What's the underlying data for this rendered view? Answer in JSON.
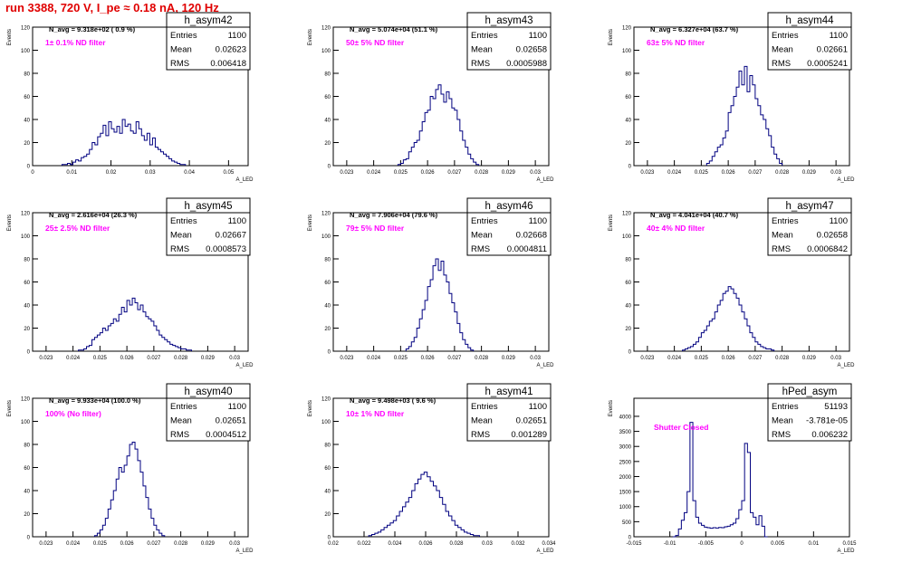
{
  "page": {
    "title": "run 3388,   720 V, I_pe ≈ 0.18 nA, 120 Hz"
  },
  "style": {
    "line_color": "#000080",
    "filter_text_color": "#ff00ff",
    "title_color": "#e00000"
  },
  "chart_data": [
    {
      "type": "bar",
      "name": "h_asym42",
      "ylabel": "Events",
      "xlabel": "A_LED",
      "navg_text": "N_avg = 9.318e+02 ( 0.9 %)",
      "filter_text": "1± 0.1% ND filter",
      "stats": {
        "Entries": "1100",
        "Mean": "0.02623",
        "RMS": "0.006418"
      },
      "xlim": [
        0,
        0.055
      ],
      "ylim": [
        0,
        120
      ],
      "xticks": [
        0,
        0.01,
        0.02,
        0.03,
        0.04,
        0.05
      ],
      "xtick_labels": [
        "0",
        "0.01",
        "0.02",
        "0.03",
        "0.04",
        "0.05"
      ],
      "yticks": [
        0,
        20,
        40,
        60,
        80,
        100,
        120
      ],
      "bin_start": 0.0075,
      "bin_width": 0.0007,
      "values": [
        1,
        1,
        2,
        1,
        3,
        5,
        4,
        7,
        8,
        10,
        14,
        20,
        18,
        25,
        28,
        35,
        26,
        38,
        32,
        29,
        34,
        28,
        40,
        34,
        36,
        30,
        28,
        38,
        32,
        26,
        22,
        28,
        18,
        24,
        16,
        14,
        12,
        10,
        8,
        6,
        4,
        3,
        2,
        1,
        1
      ]
    },
    {
      "type": "bar",
      "name": "h_asym43",
      "ylabel": "Events",
      "xlabel": "A_LED",
      "navg_text": "N_avg = 5.074e+04 (51.1 %)",
      "filter_text": "50± 5% ND filter",
      "stats": {
        "Entries": "1100",
        "Mean": "0.02658",
        "RMS": "0.0005988"
      },
      "xlim": [
        0.0225,
        0.0305
      ],
      "ylim": [
        0,
        120
      ],
      "xticks": [
        0.023,
        0.024,
        0.025,
        0.026,
        0.027,
        0.028,
        0.029,
        0.03
      ],
      "xtick_labels": [
        "0.023",
        "0.024",
        "0.025",
        "0.026",
        "0.027",
        "0.028",
        "0.029",
        "0.03"
      ],
      "yticks": [
        0,
        20,
        40,
        60,
        80,
        100,
        120
      ],
      "bin_start": 0.0249,
      "bin_width": 0.0001,
      "values": [
        1,
        2,
        5,
        6,
        12,
        16,
        20,
        22,
        30,
        38,
        46,
        48,
        60,
        58,
        66,
        70,
        62,
        55,
        64,
        58,
        50,
        48,
        40,
        30,
        22,
        16,
        10,
        6,
        3,
        1
      ]
    },
    {
      "type": "bar",
      "name": "h_asym44",
      "ylabel": "Events",
      "xlabel": "A_LED",
      "navg_text": "N_avg = 6.327e+04 (63.7 %)",
      "filter_text": "63± 5% ND filter",
      "stats": {
        "Entries": "1100",
        "Mean": "0.02661",
        "RMS": "0.0005241"
      },
      "xlim": [
        0.0225,
        0.0305
      ],
      "ylim": [
        0,
        120
      ],
      "xticks": [
        0.023,
        0.024,
        0.025,
        0.026,
        0.027,
        0.028,
        0.029,
        0.03
      ],
      "xtick_labels": [
        "0.023",
        "0.024",
        "0.025",
        "0.026",
        "0.027",
        "0.028",
        "0.029",
        "0.03"
      ],
      "yticks": [
        0,
        20,
        40,
        60,
        80,
        100,
        120
      ],
      "bin_start": 0.0252,
      "bin_width": 0.0001,
      "values": [
        2,
        4,
        8,
        12,
        16,
        18,
        24,
        30,
        46,
        52,
        60,
        68,
        82,
        70,
        86,
        64,
        78,
        70,
        58,
        52,
        44,
        40,
        32,
        26,
        16,
        10,
        6,
        2
      ]
    },
    {
      "type": "bar",
      "name": "h_asym45",
      "ylabel": "Events",
      "xlabel": "A_LED",
      "navg_text": "N_avg = 2.616e+04 (26.3 %)",
      "filter_text": "25± 2.5% ND filter",
      "stats": {
        "Entries": "1100",
        "Mean": "0.02667",
        "RMS": "0.0008573"
      },
      "xlim": [
        0.0225,
        0.0305
      ],
      "ylim": [
        0,
        120
      ],
      "xticks": [
        0.023,
        0.024,
        0.025,
        0.026,
        0.027,
        0.028,
        0.029,
        0.03
      ],
      "xtick_labels": [
        "0.023",
        "0.024",
        "0.025",
        "0.026",
        "0.027",
        "0.028",
        "0.029",
        "0.03"
      ],
      "yticks": [
        0,
        20,
        40,
        60,
        80,
        100,
        120
      ],
      "bin_start": 0.0242,
      "bin_width": 0.0001,
      "values": [
        1,
        1,
        2,
        4,
        5,
        10,
        12,
        14,
        16,
        20,
        18,
        22,
        24,
        28,
        26,
        32,
        38,
        34,
        44,
        40,
        46,
        42,
        36,
        40,
        34,
        30,
        28,
        26,
        22,
        18,
        14,
        12,
        10,
        8,
        6,
        5,
        4,
        3,
        2,
        2,
        1,
        1
      ]
    },
    {
      "type": "bar",
      "name": "h_asym46",
      "ylabel": "Events",
      "xlabel": "A_LED",
      "navg_text": "N_avg = 7.906e+04 (79.6 %)",
      "filter_text": "79± 5% ND filter",
      "stats": {
        "Entries": "1100",
        "Mean": "0.02668",
        "RMS": "0.0004811"
      },
      "xlim": [
        0.0225,
        0.0305
      ],
      "ylim": [
        0,
        120
      ],
      "xticks": [
        0.023,
        0.024,
        0.025,
        0.026,
        0.027,
        0.028,
        0.029,
        0.03
      ],
      "xtick_labels": [
        "0.023",
        "0.024",
        "0.025",
        "0.026",
        "0.027",
        "0.028",
        "0.029",
        "0.03"
      ],
      "yticks": [
        0,
        20,
        40,
        60,
        80,
        100,
        120
      ],
      "bin_start": 0.0252,
      "bin_width": 0.0001,
      "values": [
        2,
        4,
        8,
        12,
        20,
        28,
        36,
        44,
        56,
        62,
        74,
        80,
        70,
        78,
        66,
        60,
        50,
        42,
        34,
        24,
        16,
        10,
        6,
        3,
        1
      ]
    },
    {
      "type": "bar",
      "name": "h_asym47",
      "ylabel": "Events",
      "xlabel": "A_LED",
      "navg_text": "N_avg = 4.041e+04 (40.7 %)",
      "filter_text": "40± 4% ND filter",
      "stats": {
        "Entries": "1100",
        "Mean": "0.02658",
        "RMS": "0.0006842"
      },
      "xlim": [
        0.0225,
        0.0305
      ],
      "ylim": [
        0,
        120
      ],
      "xticks": [
        0.023,
        0.024,
        0.025,
        0.026,
        0.027,
        0.028,
        0.029,
        0.03
      ],
      "xtick_labels": [
        "0.023",
        "0.024",
        "0.025",
        "0.026",
        "0.027",
        "0.028",
        "0.029",
        "0.03"
      ],
      "yticks": [
        0,
        20,
        40,
        60,
        80,
        100,
        120
      ],
      "bin_start": 0.0243,
      "bin_width": 0.0001,
      "values": [
        1,
        2,
        3,
        4,
        6,
        8,
        12,
        16,
        18,
        22,
        26,
        28,
        34,
        40,
        44,
        50,
        52,
        56,
        54,
        50,
        46,
        40,
        34,
        28,
        22,
        16,
        12,
        8,
        6,
        4,
        3,
        2,
        2,
        1
      ]
    },
    {
      "type": "bar",
      "name": "h_asym40",
      "ylabel": "Events",
      "xlabel": "A_LED",
      "navg_text": "N_avg = 9.933e+04 (100.0 %)",
      "filter_text": "100% (No filter)",
      "stats": {
        "Entries": "1100",
        "Mean": "0.02651",
        "RMS": "0.0004512"
      },
      "xlim": [
        0.0225,
        0.0305
      ],
      "ylim": [
        0,
        120
      ],
      "xticks": [
        0.023,
        0.024,
        0.025,
        0.026,
        0.027,
        0.028,
        0.029,
        0.03
      ],
      "xtick_labels": [
        "0.023",
        "0.024",
        "0.025",
        "0.026",
        "0.027",
        "0.028",
        "0.029",
        "0.03"
      ],
      "yticks": [
        0,
        20,
        40,
        60,
        80,
        100,
        120
      ],
      "bin_start": 0.0248,
      "bin_width": 0.0001,
      "values": [
        1,
        3,
        6,
        10,
        16,
        24,
        32,
        40,
        50,
        60,
        56,
        62,
        70,
        80,
        82,
        76,
        66,
        56,
        44,
        34,
        24,
        16,
        10,
        6,
        3,
        1
      ]
    },
    {
      "type": "bar",
      "name": "h_asym41",
      "ylabel": "Events",
      "xlabel": "A_LED",
      "navg_text": "N_avg = 9.498e+03 ( 9.6 %)",
      "filter_text": "10± 1% ND filter",
      "stats": {
        "Entries": "1100",
        "Mean": "0.02651",
        "RMS": "0.001289"
      },
      "xlim": [
        0.02,
        0.034
      ],
      "ylim": [
        0,
        120
      ],
      "xticks": [
        0.02,
        0.022,
        0.024,
        0.026,
        0.028,
        0.03,
        0.032,
        0.034
      ],
      "xtick_labels": [
        "0.02",
        "0.022",
        "0.024",
        "0.026",
        "0.028",
        "0.03",
        "0.032",
        "0.034"
      ],
      "yticks": [
        0,
        20,
        40,
        60,
        80,
        100,
        120
      ],
      "bin_start": 0.0223,
      "bin_width": 0.0002,
      "values": [
        1,
        2,
        3,
        4,
        6,
        8,
        10,
        12,
        14,
        18,
        22,
        26,
        30,
        34,
        40,
        46,
        50,
        54,
        56,
        52,
        48,
        44,
        40,
        34,
        28,
        22,
        18,
        14,
        10,
        8,
        6,
        4,
        3,
        2,
        1,
        1
      ]
    },
    {
      "type": "bar",
      "name": "hPed_asym",
      "ylabel": "Events",
      "xlabel": "A_LED",
      "navg_text": "",
      "filter_text": "Shutter Closed",
      "stats": {
        "Entries": "51193",
        "Mean": "-3.781e-05",
        "RMS": "0.006232"
      },
      "xlim": [
        -0.015,
        0.015
      ],
      "ylim": [
        0,
        4600
      ],
      "xticks": [
        -0.015,
        -0.01,
        -0.005,
        0,
        0.005,
        0.01,
        0.015
      ],
      "xtick_labels": [
        "-0.015",
        "-0.01",
        "-0.005",
        "0",
        "0.005",
        "0.01",
        "0.015"
      ],
      "yticks": [
        0,
        500,
        1000,
        1500,
        2000,
        2500,
        3000,
        3500,
        4000
      ],
      "bin_start": -0.0096,
      "bin_width": 0.0004,
      "values": [
        0,
        40,
        260,
        550,
        800,
        1500,
        3800,
        1200,
        650,
        450,
        380,
        320,
        300,
        280,
        300,
        290,
        310,
        300,
        330,
        350,
        400,
        450,
        600,
        900,
        1200,
        3100,
        2800,
        800,
        650,
        400,
        700,
        350,
        0
      ]
    }
  ]
}
